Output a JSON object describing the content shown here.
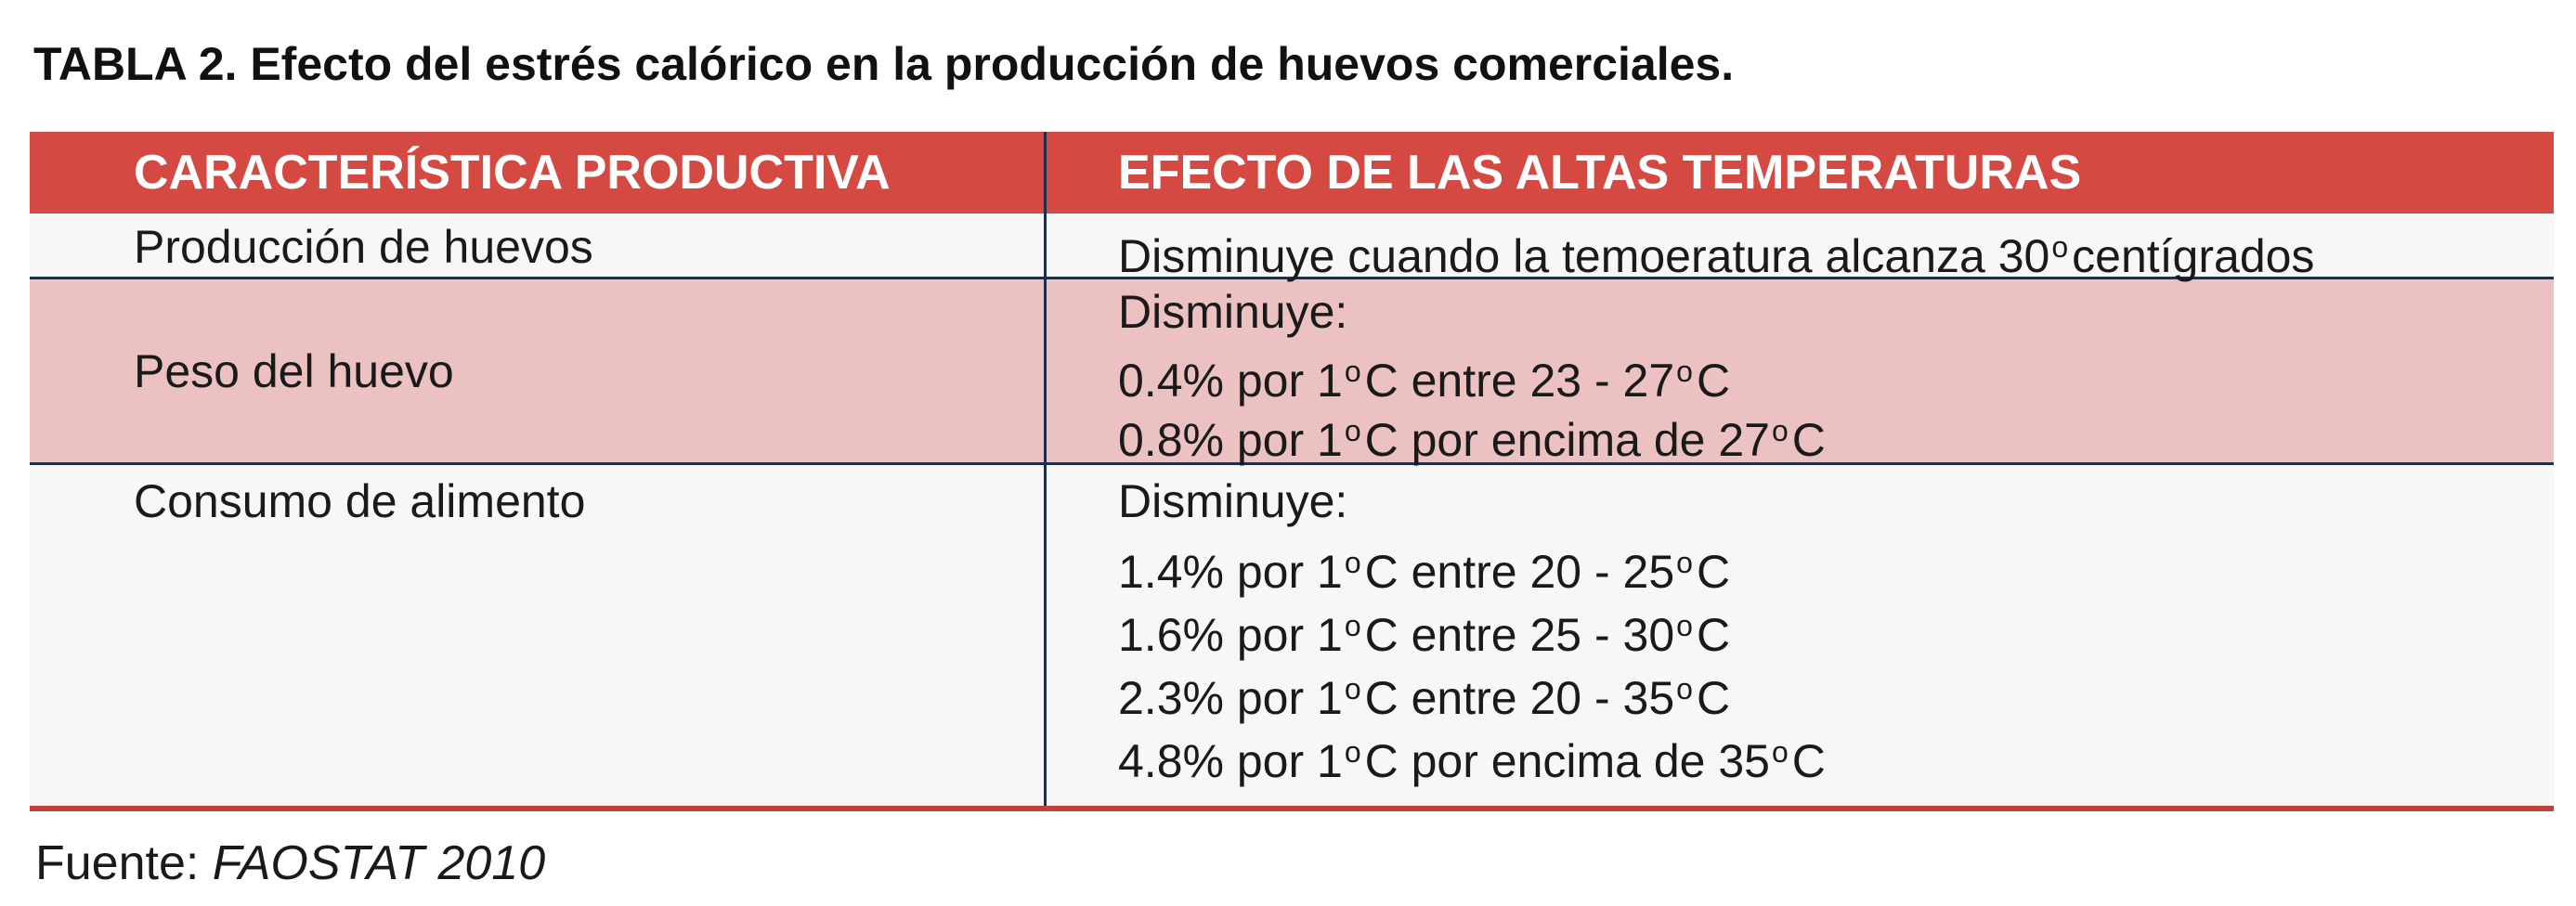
{
  "title": "TABLA 2. Efecto del estrés calórico en la producción de huevos comerciales.",
  "colors": {
    "header_red": "#d44a43",
    "row_pink": "#ebc1c1",
    "row_light": "#f7f7f7",
    "rule_navy": "#1f2d4a",
    "bottom_rule_red": "#c1403a"
  },
  "table": {
    "headers": [
      "CARACTERÍSTICA PRODUCTIVA",
      "EFECTO DE LAS ALTAS TEMPERATURAS"
    ],
    "rows": [
      {
        "characteristic": "Producción de huevos",
        "effect_lines": [
          {
            "text": "Disminuye cuando la temoeratura alcanza 30",
            "degree": "o",
            "suffix": "centígrados"
          }
        ]
      },
      {
        "characteristic": "Peso del huevo",
        "effect_lines": [
          {
            "text": "Disminuye:"
          },
          {
            "text": "0.4% por 1",
            "degree": "o",
            "suffix": "C entre 23 - 27",
            "degree2": "o",
            "suffix2": "C"
          },
          {
            "text": "0.8% por 1",
            "degree": "o",
            "suffix": "C por encima de 27",
            "degree2": "o",
            "suffix2": "C"
          }
        ]
      },
      {
        "characteristic": "Consumo de alimento",
        "effect_lines": [
          {
            "text": "Disminuye:"
          },
          {
            "text": "1.4% por 1",
            "degree": "o",
            "suffix": "C entre 20 - 25",
            "degree2": "o",
            "suffix2": "C"
          },
          {
            "text": "1.6% por 1",
            "degree": "o",
            "suffix": "C entre 25 - 30",
            "degree2": "o",
            "suffix2": "C"
          },
          {
            "text": "2.3% por 1",
            "degree": "o",
            "suffix": "C entre 20 - 35",
            "degree2": "o",
            "suffix2": "C"
          },
          {
            "text": "4.8% por 1",
            "degree": "o",
            "suffix": "C por encima de 35",
            "degree2": "o",
            "suffix2": "C"
          }
        ]
      }
    ]
  },
  "source": {
    "label": "Fuente:",
    "value": "FAOSTAT 2010"
  }
}
